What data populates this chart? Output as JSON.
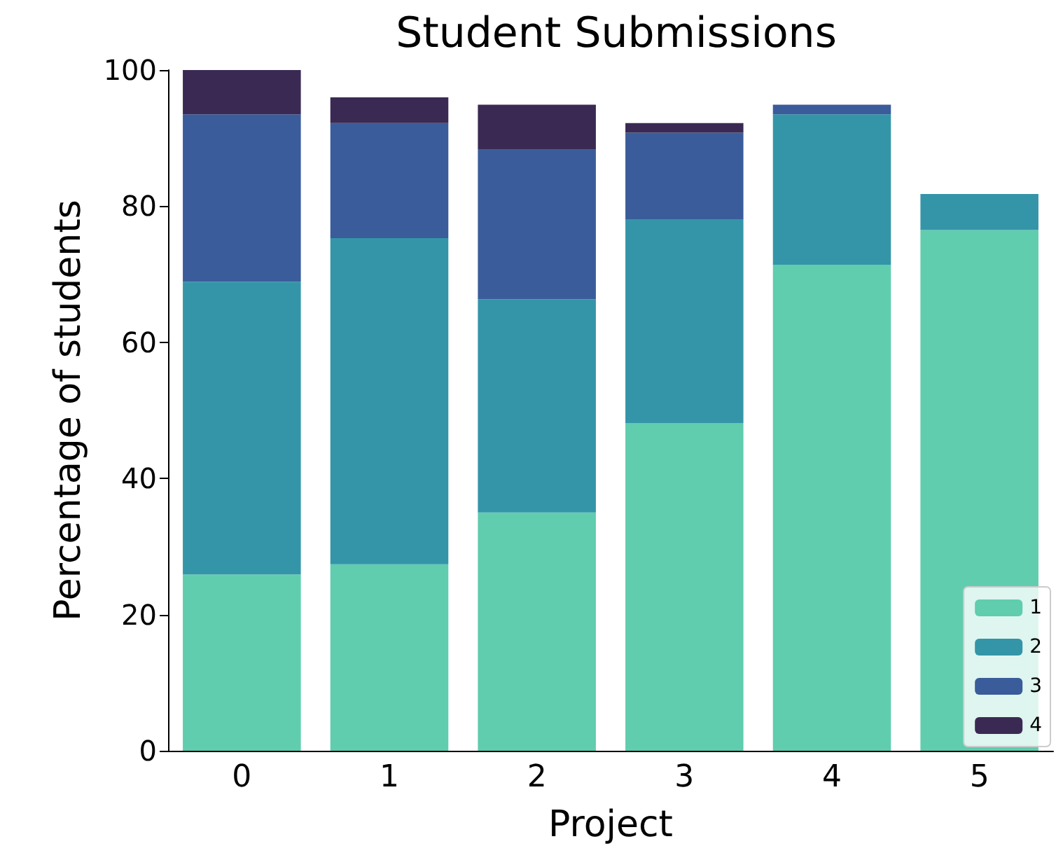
{
  "chart_data": {
    "type": "bar",
    "title": "Student Submissions",
    "xlabel": "Project",
    "ylabel": "Percentage of students",
    "categories": [
      "0",
      "1",
      "2",
      "3",
      "4",
      "5"
    ],
    "series": [
      {
        "name": "1",
        "color": "#5fcdae",
        "values": [
          25.9,
          27.4,
          35.0,
          48.1,
          71.4,
          76.5
        ]
      },
      {
        "name": "2",
        "color": "#3495a8",
        "values": [
          43.0,
          47.9,
          31.3,
          29.9,
          22.1,
          5.3
        ]
      },
      {
        "name": "3",
        "color": "#3a5c9b",
        "values": [
          24.6,
          16.9,
          22.0,
          12.8,
          1.4,
          0
        ]
      },
      {
        "name": "4",
        "color": "#3a2a53",
        "values": [
          6.5,
          3.8,
          6.6,
          1.4,
          0,
          0
        ]
      }
    ],
    "stacked": true,
    "ylim": [
      0,
      100
    ],
    "yticks": [
      0,
      20,
      40,
      60,
      80,
      100
    ],
    "grid": false,
    "legend": "bottom right"
  }
}
